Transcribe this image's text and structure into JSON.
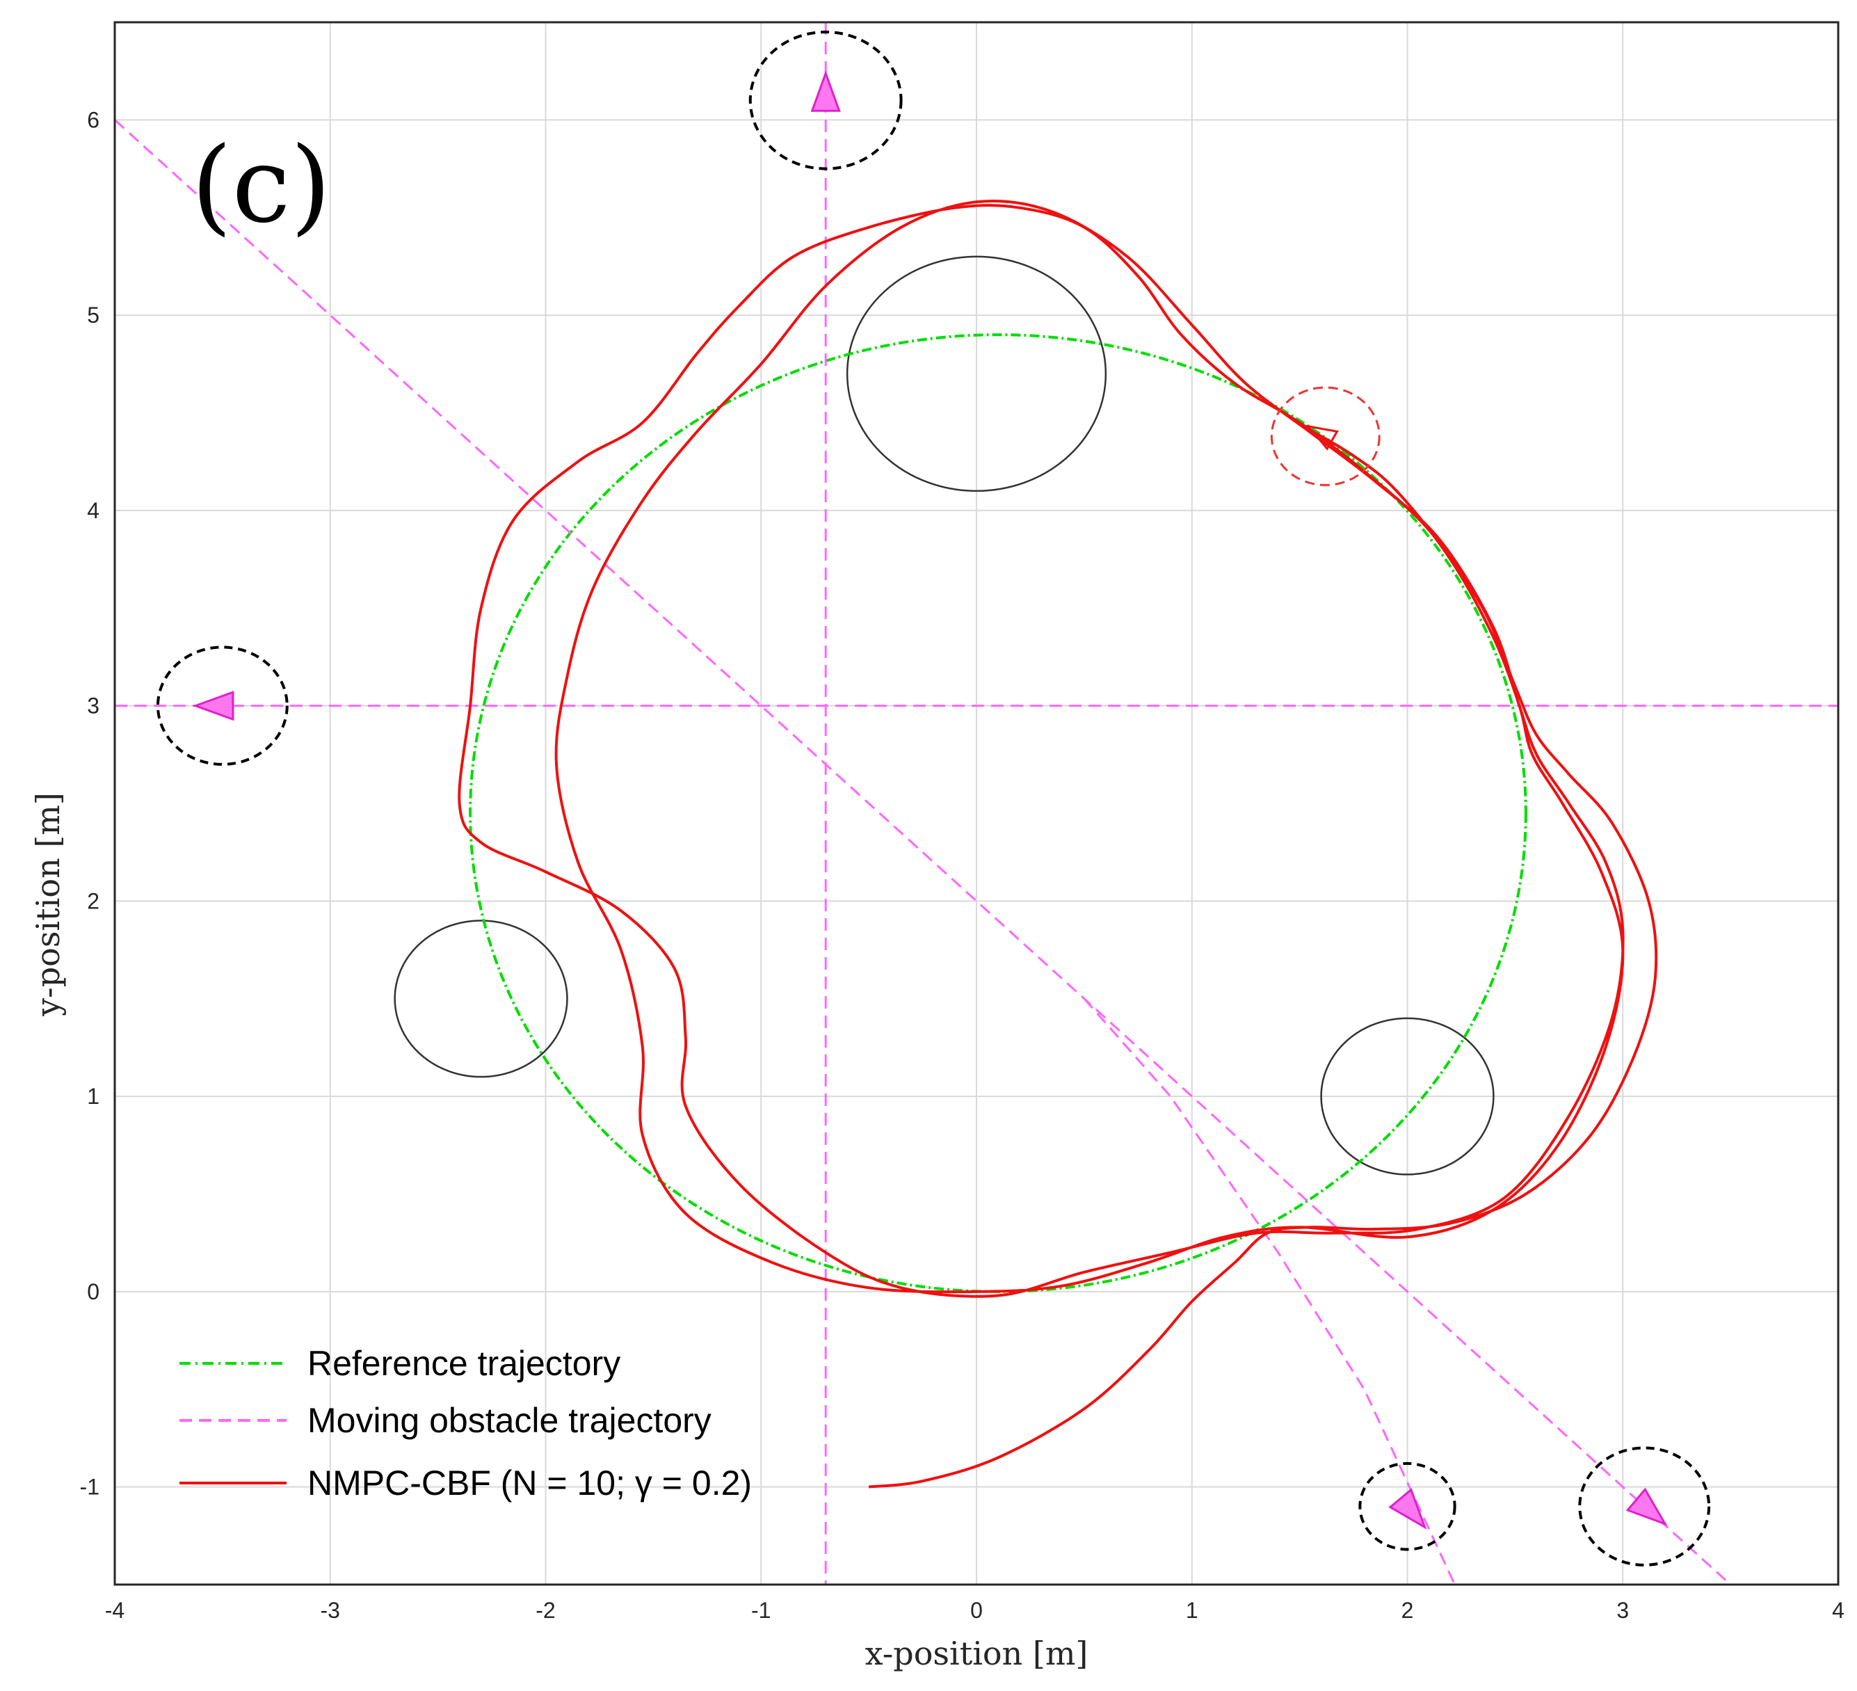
{
  "chart_data": {
    "type": "line",
    "panel_label": "(c)",
    "xlabel": "x-position [m]",
    "ylabel": "y-position [m]",
    "xlim": [
      -4,
      4
    ],
    "ylim": [
      -1.5,
      6.5
    ],
    "xticks": [
      -4,
      -3,
      -2,
      -1,
      0,
      1,
      2,
      3,
      4
    ],
    "yticks": [
      -1,
      0,
      1,
      2,
      3,
      4,
      5,
      6
    ],
    "xtick_labels": [
      "-4",
      "-3",
      "-2",
      "-1",
      "0",
      "1",
      "2",
      "3",
      "4"
    ],
    "ytick_labels": [
      "-1",
      "0",
      "1",
      "2",
      "3",
      "4",
      "5",
      "6"
    ],
    "grid": true,
    "legend_position": "bottom-left",
    "series": [
      {
        "name": "Reference trajectory",
        "style": "dash-dot",
        "color": "#00dd00",
        "circle": {
          "center": [
            0.1,
            2.45
          ],
          "radius": 2.45
        }
      },
      {
        "name": "Moving obstacle trajectory",
        "style": "dashed",
        "color": "#ff66ff",
        "lines": [
          [
            [
              -4.0,
              6.0
            ],
            [
              3.5,
              -1.5
            ]
          ],
          [
            [
              -0.7,
              6.5
            ],
            [
              -0.7,
              -1.5
            ]
          ],
          [
            [
              -4.0,
              3.0
            ],
            [
              4.0,
              3.0
            ]
          ],
          [
            [
              0.5,
              1.5
            ],
            [
              0.9,
              1.0
            ],
            [
              1.4,
              0.2
            ],
            [
              1.8,
              -0.5
            ],
            [
              2.22,
              -1.5
            ]
          ]
        ]
      },
      {
        "name": "NMPC-CBF (N = 10; γ = 0.2)",
        "style": "solid",
        "color": "#ee1111",
        "points": [
          [
            -0.5,
            -1.0
          ],
          [
            -0.25,
            -0.97
          ],
          [
            0.1,
            -0.85
          ],
          [
            0.5,
            -0.6
          ],
          [
            0.8,
            -0.3
          ],
          [
            1.0,
            -0.05
          ],
          [
            1.2,
            0.15
          ],
          [
            1.35,
            0.3
          ],
          [
            1.55,
            0.33
          ],
          [
            1.85,
            0.32
          ],
          [
            2.2,
            0.35
          ],
          [
            2.55,
            0.5
          ],
          [
            2.85,
            0.8
          ],
          [
            3.05,
            1.2
          ],
          [
            3.15,
            1.6
          ],
          [
            3.12,
            2.0
          ],
          [
            2.95,
            2.4
          ],
          [
            2.75,
            2.65
          ],
          [
            2.6,
            2.85
          ],
          [
            2.5,
            3.1
          ],
          [
            2.35,
            3.5
          ],
          [
            2.1,
            3.9
          ],
          [
            1.8,
            4.2
          ],
          [
            1.5,
            4.45
          ],
          [
            1.2,
            4.65
          ],
          [
            0.95,
            4.9
          ],
          [
            0.75,
            5.2
          ],
          [
            0.5,
            5.45
          ],
          [
            0.2,
            5.55
          ],
          [
            -0.1,
            5.55
          ],
          [
            -0.5,
            5.45
          ],
          [
            -0.85,
            5.3
          ],
          [
            -1.1,
            5.05
          ],
          [
            -1.3,
            4.8
          ],
          [
            -1.55,
            4.45
          ],
          [
            -1.85,
            4.25
          ],
          [
            -2.15,
            3.95
          ],
          [
            -2.3,
            3.5
          ],
          [
            -2.35,
            3.0
          ],
          [
            -2.4,
            2.5
          ],
          [
            -2.3,
            2.3
          ],
          [
            -2.0,
            2.15
          ],
          [
            -1.65,
            1.95
          ],
          [
            -1.4,
            1.65
          ],
          [
            -1.35,
            1.3
          ],
          [
            -1.35,
            0.95
          ],
          [
            -1.1,
            0.55
          ],
          [
            -0.7,
            0.2
          ],
          [
            -0.35,
            0.02
          ],
          [
            0.1,
            -0.02
          ],
          [
            0.5,
            0.1
          ],
          [
            0.9,
            0.2
          ],
          [
            1.3,
            0.3
          ],
          [
            1.65,
            0.3
          ],
          [
            2.05,
            0.32
          ],
          [
            2.45,
            0.48
          ],
          [
            2.75,
            0.9
          ],
          [
            2.95,
            1.4
          ],
          [
            3.0,
            1.85
          ],
          [
            2.92,
            2.2
          ],
          [
            2.75,
            2.5
          ],
          [
            2.6,
            2.75
          ],
          [
            2.52,
            3.0
          ],
          [
            2.4,
            3.4
          ],
          [
            2.15,
            3.85
          ],
          [
            1.85,
            4.15
          ],
          [
            1.55,
            4.4
          ],
          [
            1.25,
            4.65
          ],
          [
            1.0,
            4.95
          ],
          [
            0.7,
            5.3
          ],
          [
            0.35,
            5.53
          ],
          [
            0.0,
            5.58
          ],
          [
            -0.35,
            5.45
          ],
          [
            -0.7,
            5.15
          ],
          [
            -1.0,
            4.75
          ],
          [
            -1.3,
            4.4
          ],
          [
            -1.55,
            4.05
          ],
          [
            -1.78,
            3.6
          ],
          [
            -1.9,
            3.15
          ],
          [
            -1.95,
            2.7
          ],
          [
            -1.85,
            2.2
          ],
          [
            -1.65,
            1.75
          ],
          [
            -1.55,
            1.25
          ],
          [
            -1.55,
            0.8
          ],
          [
            -1.35,
            0.4
          ],
          [
            -0.95,
            0.15
          ],
          [
            -0.5,
            0.02
          ],
          [
            0.0,
            0.0
          ],
          [
            0.4,
            0.03
          ],
          [
            0.8,
            0.15
          ],
          [
            1.15,
            0.28
          ],
          [
            1.5,
            0.33
          ],
          [
            2.0,
            0.28
          ],
          [
            2.4,
            0.42
          ],
          [
            2.7,
            0.75
          ],
          [
            2.92,
            1.25
          ],
          [
            3.0,
            1.75
          ],
          [
            2.9,
            2.15
          ],
          [
            2.72,
            2.5
          ],
          [
            2.58,
            2.75
          ],
          [
            2.52,
            3.0
          ],
          [
            2.4,
            3.35
          ],
          [
            2.2,
            3.75
          ],
          [
            1.95,
            4.1
          ],
          [
            1.75,
            4.28
          ],
          [
            1.52,
            4.43
          ]
        ]
      }
    ],
    "static_obstacles": [
      {
        "center": [
          0.0,
          4.7
        ],
        "radius": 0.6
      },
      {
        "center": [
          -2.3,
          1.5
        ],
        "radius": 0.4
      },
      {
        "center": [
          2.0,
          1.0
        ],
        "radius": 0.4
      }
    ],
    "moving_obstacles": [
      {
        "center": [
          -0.7,
          6.1
        ],
        "radius": 0.35,
        "heading_deg": 90
      },
      {
        "center": [
          -3.5,
          3.0
        ],
        "radius": 0.3,
        "heading_deg": 180
      },
      {
        "center": [
          2.0,
          -1.1
        ],
        "radius": 0.22,
        "heading_deg": -50
      },
      {
        "center": [
          3.1,
          -1.1
        ],
        "radius": 0.3,
        "heading_deg": -40
      }
    ],
    "robot": {
      "center": [
        1.62,
        4.38
      ],
      "radius": 0.25,
      "heading_deg": 150
    }
  }
}
